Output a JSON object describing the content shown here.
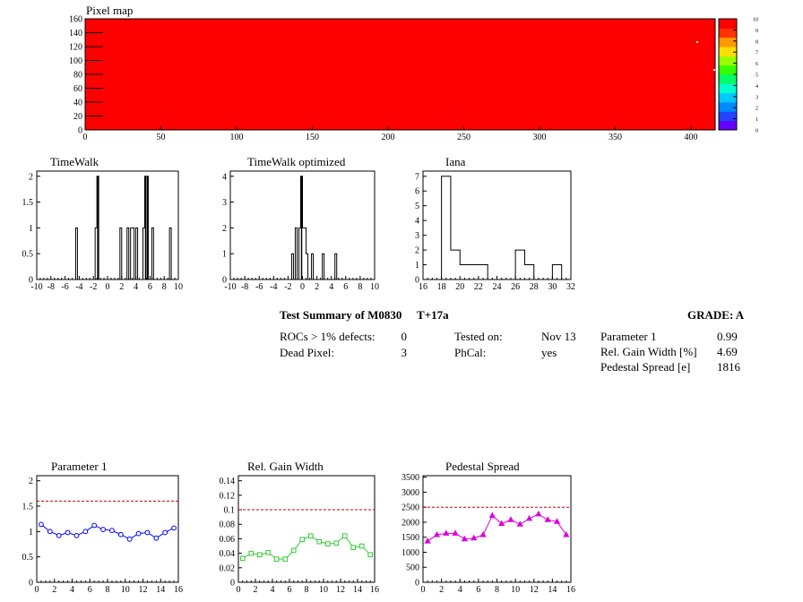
{
  "pixel_map": {
    "title": "Pixel map",
    "x_ticks": [
      "0",
      "50",
      "100",
      "150",
      "200",
      "250",
      "300",
      "350",
      "400"
    ],
    "y_ticks": [
      "0",
      "20",
      "40",
      "60",
      "80",
      "100",
      "120",
      "140",
      "160"
    ],
    "xlim": [
      0,
      416
    ],
    "ylim": [
      0,
      160
    ],
    "fill_color": "#ff0000",
    "palette_labels": [
      "0",
      "1",
      "2",
      "3",
      "4",
      "5",
      "6",
      "7",
      "8",
      "9",
      "10"
    ],
    "palette_colors": [
      "#6600ff",
      "#2244ff",
      "#0088ff",
      "#00c8ff",
      "#00ffd0",
      "#00ff66",
      "#33ff00",
      "#99ff00",
      "#ffdd00",
      "#ff9900",
      "#ff3300",
      "#ff0000"
    ]
  },
  "chart_data": [
    {
      "type": "bar",
      "title": "TimeWalk",
      "xlim": [
        -10,
        10
      ],
      "ylim": [
        0,
        2.1
      ],
      "x_ticks": [
        "-10",
        "-8",
        "-6",
        "-4",
        "-2",
        "0",
        "2",
        "4",
        "6",
        "8",
        "10"
      ],
      "y_ticks": [
        "0",
        "0.5",
        "1",
        "1.5",
        "2"
      ],
      "bin_width": 0.25,
      "bins": [
        [
          -4.5,
          1
        ],
        [
          -1.75,
          1
        ],
        [
          -1.5,
          2
        ],
        [
          1.75,
          1
        ],
        [
          2.75,
          1
        ],
        [
          3.25,
          1
        ],
        [
          3.5,
          1
        ],
        [
          4.0,
          1
        ],
        [
          5.0,
          1
        ],
        [
          5.25,
          2
        ],
        [
          5.5,
          2
        ],
        [
          6.25,
          1
        ],
        [
          8.75,
          1
        ]
      ]
    },
    {
      "type": "bar",
      "title": "TimeWalk optimized",
      "xlim": [
        -10,
        10
      ],
      "ylim": [
        0,
        4.2
      ],
      "x_ticks": [
        "-10",
        "-8",
        "-6",
        "-4",
        "-2",
        "0",
        "2",
        "4",
        "6",
        "8",
        "10"
      ],
      "y_ticks": [
        "0",
        "1",
        "2",
        "3",
        "4"
      ],
      "bin_width": 0.25,
      "bins": [
        [
          -1.5,
          1
        ],
        [
          -1.0,
          2
        ],
        [
          -0.5,
          2
        ],
        [
          -0.25,
          4
        ],
        [
          0.0,
          2
        ],
        [
          0.25,
          2
        ],
        [
          0.5,
          1
        ],
        [
          1.25,
          1
        ],
        [
          2.75,
          1
        ],
        [
          4.5,
          1
        ]
      ]
    },
    {
      "type": "bar",
      "title": "Iana",
      "xlim": [
        16,
        32
      ],
      "ylim": [
        0,
        7.35
      ],
      "x_ticks": [
        "16",
        "18",
        "20",
        "22",
        "24",
        "26",
        "28",
        "30",
        "32"
      ],
      "y_ticks": [
        "0",
        "1",
        "2",
        "3",
        "4",
        "5",
        "6",
        "7"
      ],
      "bin_width": 1,
      "bins": [
        [
          18,
          7
        ],
        [
          19,
          2
        ],
        [
          20,
          1
        ],
        [
          21,
          1
        ],
        [
          22,
          1
        ],
        [
          26,
          2
        ],
        [
          27,
          1
        ],
        [
          30,
          1
        ]
      ]
    },
    {
      "type": "line",
      "title": "Parameter 1",
      "color": "#0000ff",
      "marker": "circle",
      "xlim": [
        0,
        16
      ],
      "ylim": [
        0,
        2.1
      ],
      "threshold": 1.6,
      "x_ticks": [
        "0",
        "2",
        "4",
        "6",
        "8",
        "10",
        "12",
        "14",
        "16"
      ],
      "y_ticks": [
        "0",
        "0.5",
        "1",
        "1.5",
        "2"
      ],
      "x": [
        0.5,
        1.5,
        2.5,
        3.5,
        4.5,
        5.5,
        6.5,
        7.5,
        8.5,
        9.5,
        10.5,
        11.5,
        12.5,
        13.5,
        14.5,
        15.5
      ],
      "y": [
        1.14,
        1.0,
        0.92,
        0.98,
        0.92,
        1.0,
        1.12,
        1.04,
        1.02,
        0.94,
        0.85,
        0.96,
        0.98,
        0.87,
        0.98,
        1.07
      ]
    },
    {
      "type": "line",
      "title": "Rel. Gain Width",
      "color": "#33cc33",
      "marker": "square",
      "xlim": [
        0,
        16
      ],
      "ylim": [
        0,
        0.147
      ],
      "threshold": 0.1,
      "x_ticks": [
        "0",
        "2",
        "4",
        "6",
        "8",
        "10",
        "12",
        "14",
        "16"
      ],
      "y_ticks": [
        "0",
        "0.02",
        "0.04",
        "0.06",
        "0.08",
        "0.1",
        "0.12",
        "0.14"
      ],
      "x": [
        0.5,
        1.5,
        2.5,
        3.5,
        4.5,
        5.5,
        6.5,
        7.5,
        8.5,
        9.5,
        10.5,
        11.5,
        12.5,
        13.5,
        14.5,
        15.5
      ],
      "y": [
        0.033,
        0.04,
        0.038,
        0.041,
        0.032,
        0.032,
        0.044,
        0.059,
        0.064,
        0.056,
        0.053,
        0.054,
        0.064,
        0.048,
        0.05,
        0.038
      ]
    },
    {
      "type": "line",
      "title": "Pedestal Spread",
      "color": "#dd00dd",
      "marker": "triangle",
      "xlim": [
        0,
        16
      ],
      "ylim": [
        0,
        3550
      ],
      "threshold": 2500,
      "x_ticks": [
        "0",
        "2",
        "4",
        "6",
        "8",
        "10",
        "12",
        "14",
        "16"
      ],
      "y_ticks": [
        "0",
        "500",
        "1000",
        "1500",
        "2000",
        "2500",
        "3000",
        "3500"
      ],
      "x": [
        0.5,
        1.5,
        2.5,
        3.5,
        4.5,
        5.5,
        6.5,
        7.5,
        8.5,
        9.5,
        10.5,
        11.5,
        12.5,
        13.5,
        14.5,
        15.5
      ],
      "y": [
        1370,
        1580,
        1630,
        1630,
        1440,
        1470,
        1580,
        2220,
        1950,
        2080,
        1930,
        2120,
        2270,
        2080,
        2020,
        1580
      ]
    }
  ],
  "summary": {
    "title": "Test Summary of M0830",
    "temp": "T+17a",
    "grade": "GRADE:  A",
    "rows_a": [
      {
        "label": "ROCs > 1% defects:",
        "value": "0"
      },
      {
        "label": "Dead Pixel:",
        "value": "3"
      }
    ],
    "rows_b": [
      {
        "label": "Tested on:",
        "value": "Nov 13"
      },
      {
        "label": "PhCal:",
        "value": "yes"
      }
    ],
    "rows_c": [
      {
        "label": "Parameter 1",
        "value": "0.99"
      },
      {
        "label": "Rel. Gain Width [%]",
        "value": "4.69"
      },
      {
        "label": "Pedestal Spread [e]",
        "value": "1816"
      }
    ]
  }
}
